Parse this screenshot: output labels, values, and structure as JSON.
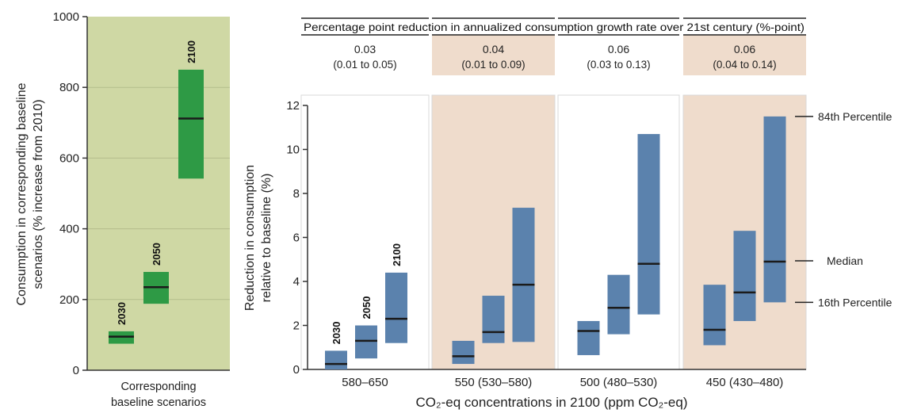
{
  "chart_data": [
    {
      "type": "range-bar",
      "panel": "baseline",
      "ylabel_lines": [
        "Consumption in corresponding baseline",
        "scenarios (% increase from 2010)"
      ],
      "xlabel_lines": [
        "Corresponding",
        "baseline scenarios"
      ],
      "ylim": [
        0,
        1000
      ],
      "yticks": [
        "0",
        "200",
        "400",
        "600",
        "800",
        "1000"
      ],
      "grid": true,
      "background": "#cfd8a4",
      "bar_color": "#2e9a45",
      "bars": [
        {
          "year": "2030",
          "low": 75,
          "high": 110,
          "median": 95
        },
        {
          "year": "2050",
          "low": 188,
          "high": 278,
          "median": 235
        },
        {
          "year": "2100",
          "low": 542,
          "high": 850,
          "median": 712
        }
      ]
    },
    {
      "type": "range-bar",
      "panel": "reduction",
      "ylabel_lines": [
        "Reduction in consumption",
        "relative to baseline (%)"
      ],
      "xlabel": "CO₂-eq concentrations in 2100 (ppm CO₂-eq)",
      "ylim": [
        0,
        12
      ],
      "yticks": [
        "0",
        "2",
        "4",
        "6",
        "8",
        "10",
        "12"
      ],
      "bar_color": "#5b82ad",
      "header_title": "Percentage point reduction in annualized consumption growth rate over 21st century (%-point)",
      "legend": {
        "p84": "84th Percentile",
        "median": "Median",
        "p16": "16th Percentile"
      },
      "groups": [
        {
          "label": "580–650",
          "shade": false,
          "rate": "0.03",
          "rate_range": "(0.01 to 0.05)",
          "bars": [
            {
              "year": "2030",
              "low": 0.0,
              "high": 0.85,
              "median": 0.25
            },
            {
              "year": "2050",
              "low": 0.5,
              "high": 2.0,
              "median": 1.3
            },
            {
              "year": "2100",
              "low": 1.2,
              "high": 4.4,
              "median": 2.3
            }
          ]
        },
        {
          "label": "550 (530–580)",
          "shade": true,
          "rate": "0.04",
          "rate_range": "(0.01 to 0.09)",
          "bars": [
            {
              "year": "",
              "low": 0.25,
              "high": 1.3,
              "median": 0.6
            },
            {
              "year": "",
              "low": 1.2,
              "high": 3.35,
              "median": 1.7
            },
            {
              "year": "",
              "low": 1.25,
              "high": 7.35,
              "median": 3.85
            }
          ]
        },
        {
          "label": "500 (480–530)",
          "shade": false,
          "rate": "0.06",
          "rate_range": "(0.03 to 0.13)",
          "bars": [
            {
              "year": "",
              "low": 0.65,
              "high": 2.2,
              "median": 1.75
            },
            {
              "year": "",
              "low": 1.6,
              "high": 4.3,
              "median": 2.8
            },
            {
              "year": "",
              "low": 2.5,
              "high": 10.7,
              "median": 4.8
            }
          ]
        },
        {
          "label": "450 (430–480)",
          "shade": true,
          "rate": "0.06",
          "rate_range": "(0.04 to 0.14)",
          "bars": [
            {
              "year": "",
              "low": 1.1,
              "high": 3.85,
              "median": 1.8
            },
            {
              "year": "",
              "low": 2.2,
              "high": 6.3,
              "median": 3.5
            },
            {
              "year": "",
              "low": 3.05,
              "high": 11.5,
              "median": 4.9
            }
          ]
        }
      ]
    }
  ]
}
